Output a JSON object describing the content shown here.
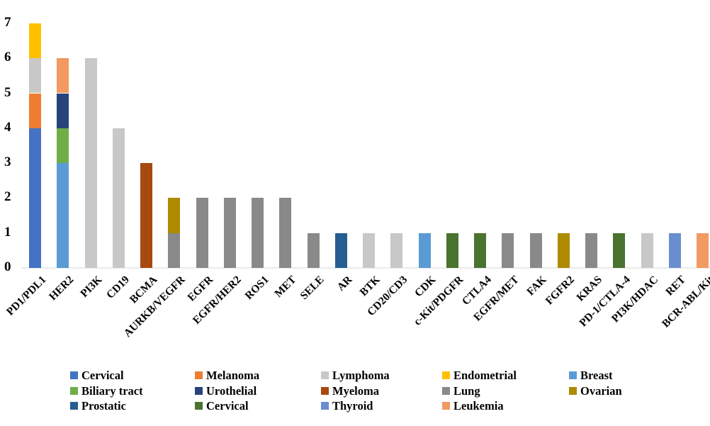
{
  "chart_data": {
    "type": "bar",
    "stacked": true,
    "title": "",
    "xlabel": "",
    "ylabel": "",
    "ylim": [
      0,
      7
    ],
    "yticks": [
      0,
      1,
      2,
      3,
      4,
      5,
      6,
      7
    ],
    "grid": false,
    "legend_position": "bottom",
    "legend_columns": 5,
    "text_color": "#000000",
    "baseline_color": "#ebebeb",
    "categories": [
      "PD1/PDL1",
      "HER2",
      "PI3K",
      "CD19",
      "BCMA",
      "AURKB/VEGFR",
      "EGFR",
      "EGFR/HER2",
      "ROS1",
      "MET",
      "SELE",
      "AR",
      "BTK",
      "CD20/CD3",
      "CDK",
      "c-Kit/PDGFR",
      "CTLA4",
      "EGFR/MET",
      "FAK",
      "FGFR2",
      "KRAS",
      "PD-1/CTLA-4",
      "PI3K/HDAC",
      "RET",
      "BCR-ABL/Kit"
    ],
    "series": [
      {
        "name": "Cervical",
        "color": "#4472C4",
        "values": [
          4,
          0,
          0,
          0,
          0,
          0,
          0,
          0,
          0,
          0,
          0,
          0,
          0,
          0,
          0,
          0,
          0,
          0,
          0,
          0,
          0,
          0,
          0,
          0,
          0
        ]
      },
      {
        "name": "Melanoma",
        "color": "#ED7D31",
        "values": [
          1,
          0,
          0,
          0,
          0,
          0,
          0,
          0,
          0,
          0,
          0,
          0,
          0,
          0,
          0,
          0,
          0,
          0,
          0,
          0,
          0,
          0,
          0,
          0,
          0
        ]
      },
      {
        "name": "Lymphoma",
        "color": "#C9C7C7",
        "values": [
          1,
          0,
          6,
          4,
          0,
          0,
          0,
          0,
          0,
          0,
          0,
          0,
          1,
          1,
          0,
          0,
          0,
          0,
          0,
          0,
          0,
          0,
          1,
          0,
          0
        ]
      },
      {
        "name": "Endometrial",
        "color": "#FFC000",
        "values": [
          1,
          0,
          0,
          0,
          0,
          0,
          0,
          0,
          0,
          0,
          0,
          0,
          0,
          0,
          0,
          0,
          0,
          0,
          0,
          0,
          0,
          0,
          0,
          0,
          0
        ]
      },
      {
        "name": "Breast",
        "color": "#5B9BD5",
        "values": [
          0,
          3,
          0,
          0,
          0,
          0,
          0,
          0,
          0,
          0,
          0,
          0,
          0,
          0,
          1,
          0,
          0,
          0,
          0,
          0,
          0,
          0,
          0,
          0,
          0
        ]
      },
      {
        "name": "Biliary tract",
        "color": "#70AD47",
        "values": [
          0,
          1,
          0,
          0,
          0,
          0,
          0,
          0,
          0,
          0,
          0,
          0,
          0,
          0,
          0,
          0,
          0,
          0,
          0,
          0,
          0,
          0,
          0,
          0,
          0
        ]
      },
      {
        "name": "Urothelial",
        "color": "#27437B",
        "values": [
          0,
          1,
          0,
          0,
          0,
          0,
          0,
          0,
          0,
          0,
          0,
          0,
          0,
          0,
          0,
          0,
          0,
          0,
          0,
          0,
          0,
          0,
          0,
          0,
          0
        ]
      },
      {
        "name": "Myeloma",
        "color": "#A8490F",
        "values": [
          0,
          0,
          0,
          0,
          3,
          0,
          0,
          0,
          0,
          0,
          0,
          0,
          0,
          0,
          0,
          0,
          0,
          0,
          0,
          0,
          0,
          0,
          0,
          0,
          0
        ]
      },
      {
        "name": "Lung",
        "color": "#898989",
        "values": [
          0,
          0,
          0,
          0,
          0,
          1,
          2,
          2,
          2,
          2,
          1,
          0,
          0,
          0,
          0,
          0,
          0,
          1,
          1,
          0,
          1,
          0,
          0,
          0,
          0
        ]
      },
      {
        "name": "Ovarian",
        "color": "#AE8A00",
        "values": [
          0,
          0,
          0,
          0,
          0,
          1,
          0,
          0,
          0,
          0,
          0,
          0,
          0,
          0,
          0,
          0,
          0,
          0,
          0,
          1,
          0,
          0,
          0,
          0,
          0
        ]
      },
      {
        "name": "Prostatic",
        "color": "#255E91",
        "values": [
          0,
          0,
          0,
          0,
          0,
          0,
          0,
          0,
          0,
          0,
          0,
          1,
          0,
          0,
          0,
          0,
          0,
          0,
          0,
          0,
          0,
          0,
          0,
          0,
          0
        ]
      },
      {
        "name": "Cervical",
        "color": "#4A7330",
        "values": [
          0,
          0,
          0,
          0,
          0,
          0,
          0,
          0,
          0,
          0,
          0,
          0,
          0,
          0,
          0,
          1,
          1,
          0,
          0,
          0,
          0,
          1,
          0,
          0,
          0
        ]
      },
      {
        "name": "Thyroid",
        "color": "#698ED0",
        "values": [
          0,
          0,
          0,
          0,
          0,
          0,
          0,
          0,
          0,
          0,
          0,
          0,
          0,
          0,
          0,
          0,
          0,
          0,
          0,
          0,
          0,
          0,
          0,
          1,
          0
        ]
      },
      {
        "name": "Leukemia",
        "color": "#F29A62",
        "values": [
          0,
          1,
          0,
          0,
          0,
          0,
          0,
          0,
          0,
          0,
          0,
          0,
          0,
          0,
          0,
          0,
          0,
          0,
          0,
          0,
          0,
          0,
          0,
          0,
          1
        ]
      }
    ]
  }
}
